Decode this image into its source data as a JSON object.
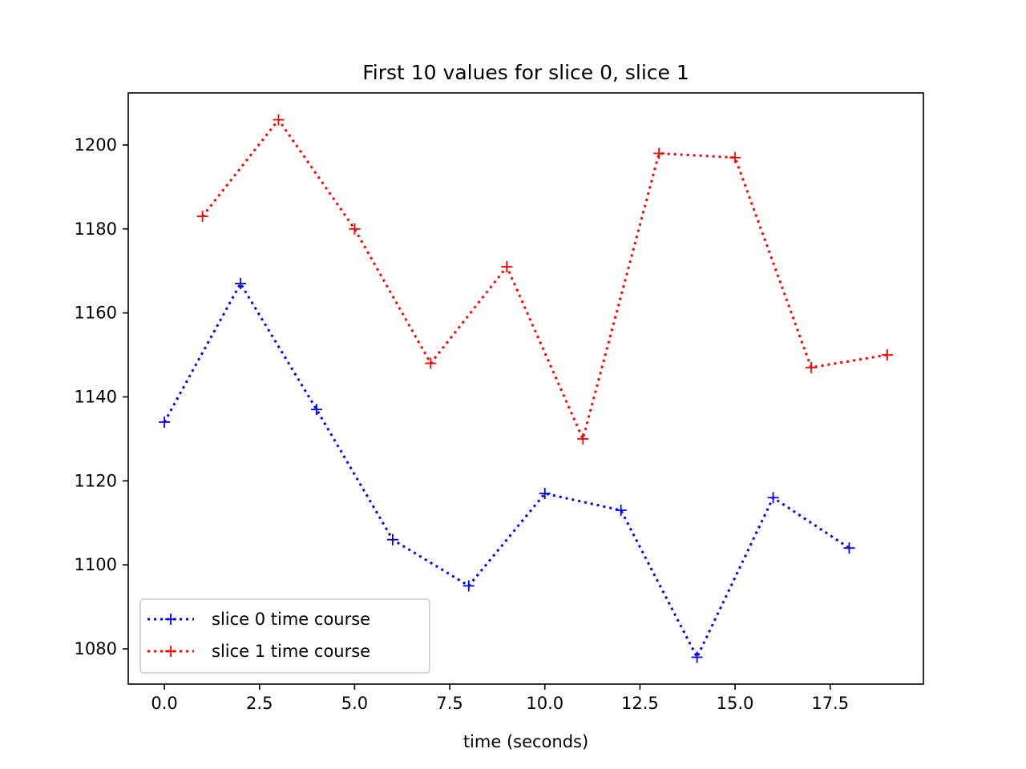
{
  "chart_data": {
    "type": "line",
    "title": "First 10 values for slice 0, slice 1",
    "xlabel": "time (seconds)",
    "ylabel": "",
    "xlim": [
      -0.95,
      19.95
    ],
    "ylim": [
      1071.6,
      1212.4
    ],
    "xticks": [
      0.0,
      2.5,
      5.0,
      7.5,
      10.0,
      12.5,
      15.0,
      17.5
    ],
    "xtick_labels": [
      "0.0",
      "2.5",
      "5.0",
      "7.5",
      "10.0",
      "12.5",
      "15.0",
      "17.5"
    ],
    "yticks": [
      1080,
      1100,
      1120,
      1140,
      1160,
      1180,
      1200
    ],
    "ytick_labels": [
      "1080",
      "1100",
      "1120",
      "1140",
      "1160",
      "1180",
      "1200"
    ],
    "grid": false,
    "legend_position": "lower-left",
    "series": [
      {
        "name": "slice 0 time course",
        "color": "#0000ff",
        "line_style": "dotted",
        "marker": "plus",
        "x": [
          0,
          2,
          4,
          6,
          8,
          10,
          12,
          14,
          16,
          18
        ],
        "y": [
          1134,
          1167,
          1137,
          1106,
          1095,
          1117,
          1113,
          1078,
          1116,
          1104
        ]
      },
      {
        "name": "slice 1 time course",
        "color": "#ff0000",
        "line_style": "dotted",
        "marker": "plus",
        "x": [
          1,
          3,
          5,
          7,
          9,
          11,
          13,
          15,
          17,
          19
        ],
        "y": [
          1183,
          1206,
          1180,
          1148,
          1171,
          1130,
          1198,
          1197,
          1147,
          1150
        ]
      }
    ]
  }
}
